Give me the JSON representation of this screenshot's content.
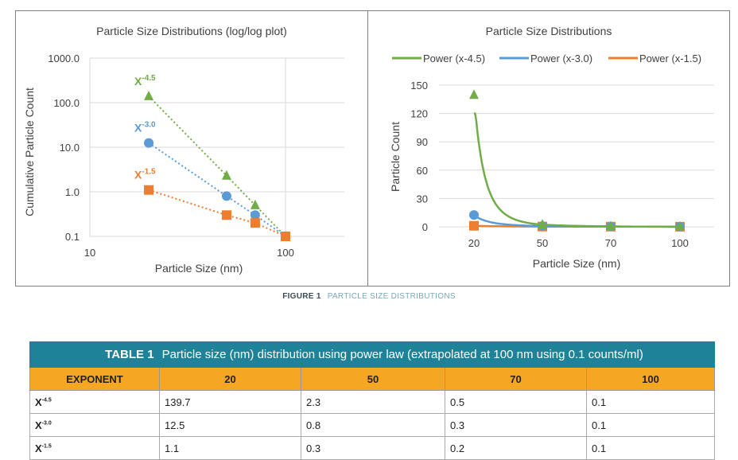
{
  "chart_data": [
    {
      "type": "scatter",
      "title": "Particle Size Distributions (log/log plot)",
      "xlabel": "Particle Size (nm)",
      "ylabel": "Cumulative Particle Count",
      "xscale": "log",
      "yscale": "log",
      "xlim": [
        10,
        200
      ],
      "ylim": [
        0.1,
        1000
      ],
      "xticks": [
        "10",
        "100"
      ],
      "yticks": [
        "1000.0",
        "100.0",
        "10.0",
        "1.0",
        "0.1"
      ],
      "grid": true,
      "x": [
        20,
        50,
        70,
        100
      ],
      "series": [
        {
          "label": "X",
          "exp": "-4.5",
          "color": "#70ad47",
          "marker": "triangle",
          "values": [
            139.7,
            2.3,
            0.5,
            0.1
          ]
        },
        {
          "label": "X",
          "exp": "-3.0",
          "color": "#5b9bd5",
          "marker": "circle",
          "values": [
            12.5,
            0.8,
            0.3,
            0.1
          ]
        },
        {
          "label": "X",
          "exp": "-1.5",
          "color": "#ed7d31",
          "marker": "square",
          "values": [
            1.1,
            0.3,
            0.2,
            0.1
          ]
        }
      ]
    },
    {
      "type": "line",
      "title": "Particle Size Distributions",
      "xlabel": "Particle Size (nm)",
      "ylabel": "Particle Count",
      "ylim": [
        0,
        150
      ],
      "categories": [
        "20",
        "50",
        "70",
        "100"
      ],
      "yticks": [
        "150",
        "120",
        "90",
        "60",
        "30",
        "0"
      ],
      "grid": true,
      "legend": "top",
      "series": [
        {
          "name": "Power (x-4.5)",
          "color": "#70ad47",
          "marker": "triangle",
          "values": [
            139.7,
            2.3,
            0.5,
            0.1
          ]
        },
        {
          "name": "Power (x-3.0)",
          "color": "#5b9bd5",
          "marker": "circle",
          "values": [
            12.5,
            0.8,
            0.3,
            0.1
          ]
        },
        {
          "name": "Power (x-1.5)",
          "color": "#ed7d31",
          "marker": "square",
          "values": [
            1.1,
            0.3,
            0.2,
            0.1
          ]
        }
      ]
    }
  ],
  "caption": {
    "label": "FIGURE 1",
    "text": "PARTICLE SIZE DISTRIBUTIONS"
  },
  "table": {
    "label": "TABLE 1",
    "title": "Particle size (nm) distribution using power law (extrapolated at 100 nm using 0.1 counts/ml)",
    "headers": [
      "EXPONENT",
      "20",
      "50",
      "70",
      "100"
    ],
    "rows": [
      {
        "base": "X",
        "exp": "-4.5",
        "cells": [
          "139.7",
          "2.3",
          "0.5",
          "0.1"
        ]
      },
      {
        "base": "X",
        "exp": "-3.0",
        "cells": [
          "12.5",
          "0.8",
          "0.3",
          "0.1"
        ]
      },
      {
        "base": "X",
        "exp": "-1.5",
        "cells": [
          "1.1",
          "0.3",
          "0.2",
          "0.1"
        ]
      }
    ]
  }
}
